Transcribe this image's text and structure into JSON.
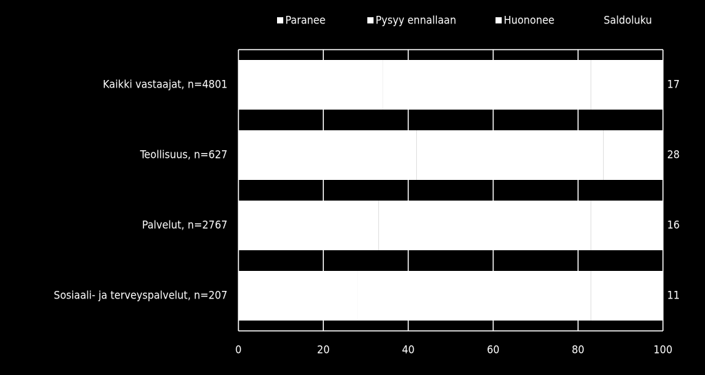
{
  "chart_data": {
    "type": "stacked-barh",
    "categories": [
      "Kaikki vastaajat, n=4801",
      "Teollisuus, n=627",
      "Palvelut, n=2767",
      "Sosiaali- ja terveyspalvelut, n=207"
    ],
    "series": [
      {
        "name": "Paranee",
        "color": "#ffffff",
        "values": [
          34,
          42,
          33,
          28
        ]
      },
      {
        "name": "Pysyy ennallaan",
        "color": "#ffffff",
        "values": [
          49,
          44,
          50,
          55
        ]
      },
      {
        "name": "Huononee",
        "color": "#ffffff",
        "values": [
          17,
          14,
          17,
          17
        ]
      }
    ],
    "balance": {
      "name": "Saldoluku",
      "values": [
        17,
        28,
        16,
        11
      ]
    },
    "xlim": [
      0,
      100
    ],
    "xticks": [
      0,
      20,
      40,
      60,
      80,
      100
    ],
    "grid": true
  }
}
